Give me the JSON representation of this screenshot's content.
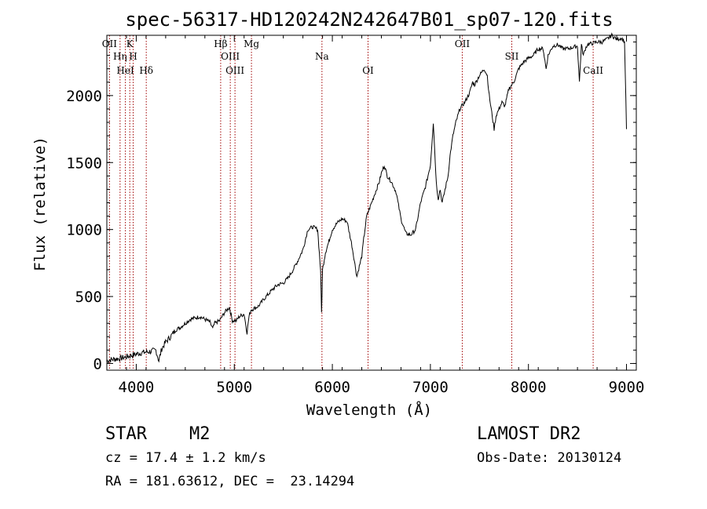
{
  "chart_data": {
    "type": "line",
    "title": "spec-56317-HD120242N242647B01_sp07-120.fits",
    "xlabel": "Wavelength (Å)",
    "ylabel": "Flux (relative)",
    "xlim": [
      3700,
      9100
    ],
    "ylim": [
      -50,
      2450
    ],
    "xticks": [
      {
        "value": 4000,
        "label": "4000"
      },
      {
        "value": 5000,
        "label": "5000"
      },
      {
        "value": 6000,
        "label": "6000"
      },
      {
        "value": 7000,
        "label": "7000"
      },
      {
        "value": 8000,
        "label": "8000"
      },
      {
        "value": 9000,
        "label": "9000"
      }
    ],
    "yticks": [
      {
        "value": 0,
        "label": "0"
      },
      {
        "value": 500,
        "label": "500"
      },
      {
        "value": 1000,
        "label": "1000"
      },
      {
        "value": 1500,
        "label": "1500"
      },
      {
        "value": 2000,
        "label": "2000"
      }
    ],
    "series": [
      {
        "x": [
          3700,
          3750,
          3800,
          3850,
          3900,
          3950,
          4000,
          4050,
          4100,
          4150,
          4200,
          4230,
          4260,
          4300,
          4350,
          4400,
          4450,
          4500,
          4550,
          4600,
          4650,
          4700,
          4750,
          4780,
          4800,
          4850,
          4900,
          4950,
          4980,
          5000,
          5020,
          5050,
          5100,
          5130,
          5150,
          5170,
          5200,
          5250,
          5300,
          5350,
          5400,
          5450,
          5500,
          5550,
          5600,
          5650,
          5700,
          5750,
          5800,
          5850,
          5880,
          5890,
          5900,
          5930,
          5960,
          6000,
          6050,
          6100,
          6150,
          6200,
          6250,
          6300,
          6320,
          6350,
          6400,
          6450,
          6480,
          6500,
          6530,
          6560,
          6600,
          6650,
          6700,
          6750,
          6800,
          6850,
          6900,
          6950,
          7000,
          7030,
          7050,
          7060,
          7080,
          7100,
          7120,
          7150,
          7180,
          7200,
          7230,
          7260,
          7300,
          7350,
          7400,
          7430,
          7450,
          7500,
          7550,
          7580,
          7600,
          7620,
          7650,
          7670,
          7700,
          7730,
          7760,
          7800,
          7850,
          7900,
          7950,
          8000,
          8050,
          8100,
          8150,
          8180,
          8200,
          8250,
          8300,
          8350,
          8400,
          8450,
          8500,
          8520,
          8540,
          8560,
          8580,
          8600,
          8650,
          8700,
          8750,
          8800,
          8850,
          8900,
          8950,
          8980,
          9000
        ],
        "y": [
          20,
          30,
          35,
          40,
          50,
          60,
          70,
          80,
          85,
          90,
          100,
          20,
          110,
          160,
          200,
          250,
          270,
          300,
          330,
          340,
          350,
          330,
          310,
          260,
          300,
          320,
          380,
          420,
          320,
          320,
          320,
          350,
          370,
          230,
          350,
          400,
          410,
          430,
          480,
          520,
          560,
          590,
          600,
          640,
          700,
          770,
          850,
          1000,
          1020,
          1000,
          700,
          380,
          700,
          830,
          900,
          1000,
          1050,
          1080,
          1060,
          880,
          650,
          800,
          930,
          1100,
          1200,
          1300,
          1360,
          1420,
          1480,
          1400,
          1360,
          1280,
          1080,
          970,
          960,
          1000,
          1200,
          1320,
          1480,
          1800,
          1500,
          1350,
          1230,
          1300,
          1200,
          1300,
          1400,
          1550,
          1700,
          1800,
          1900,
          1950,
          2020,
          2100,
          2080,
          2150,
          2200,
          2150,
          2000,
          1900,
          1750,
          1850,
          1900,
          1950,
          1920,
          2050,
          2100,
          2200,
          2250,
          2280,
          2300,
          2350,
          2350,
          2200,
          2300,
          2370,
          2380,
          2350,
          2350,
          2360,
          2370,
          2100,
          2380,
          2300,
          2350,
          2380,
          2390,
          2400,
          2400,
          2420,
          2450,
          2420,
          2430,
          2400,
          1750
        ]
      }
    ],
    "line_markers": [
      {
        "label": "OII",
        "wavelength": 3727
      },
      {
        "label": "Hη",
        "wavelength": 3835
      },
      {
        "label": "HeI",
        "wavelength": 3889
      },
      {
        "label": "K",
        "wavelength": 3934
      },
      {
        "label": "H",
        "wavelength": 3969
      },
      {
        "label": "Hδ",
        "wavelength": 4102
      },
      {
        "label": "Hβ",
        "wavelength": 4861
      },
      {
        "label": "OIII",
        "wavelength": 4959
      },
      {
        "label": "OIII",
        "wavelength": 5007
      },
      {
        "label": "Mg",
        "wavelength": 5175
      },
      {
        "label": "Na",
        "wavelength": 5894
      },
      {
        "label": "OI",
        "wavelength": 6364
      },
      {
        "label": "OII",
        "wavelength": 7325
      },
      {
        "label": "SII",
        "wavelength": 7830
      },
      {
        "label": "CaII",
        "wavelength": 8660
      }
    ],
    "line_marker_color": "#a00000",
    "line_color": "#000000",
    "grid": false
  },
  "info": {
    "class": "STAR",
    "subclass": "M2",
    "survey": "LAMOST DR2",
    "cz": "cz = 17.4 ± 1.2 km/s",
    "obs_date": "Obs-Date: 20130124",
    "coords": "RA = 181.63612, DEC =  23.14294"
  }
}
